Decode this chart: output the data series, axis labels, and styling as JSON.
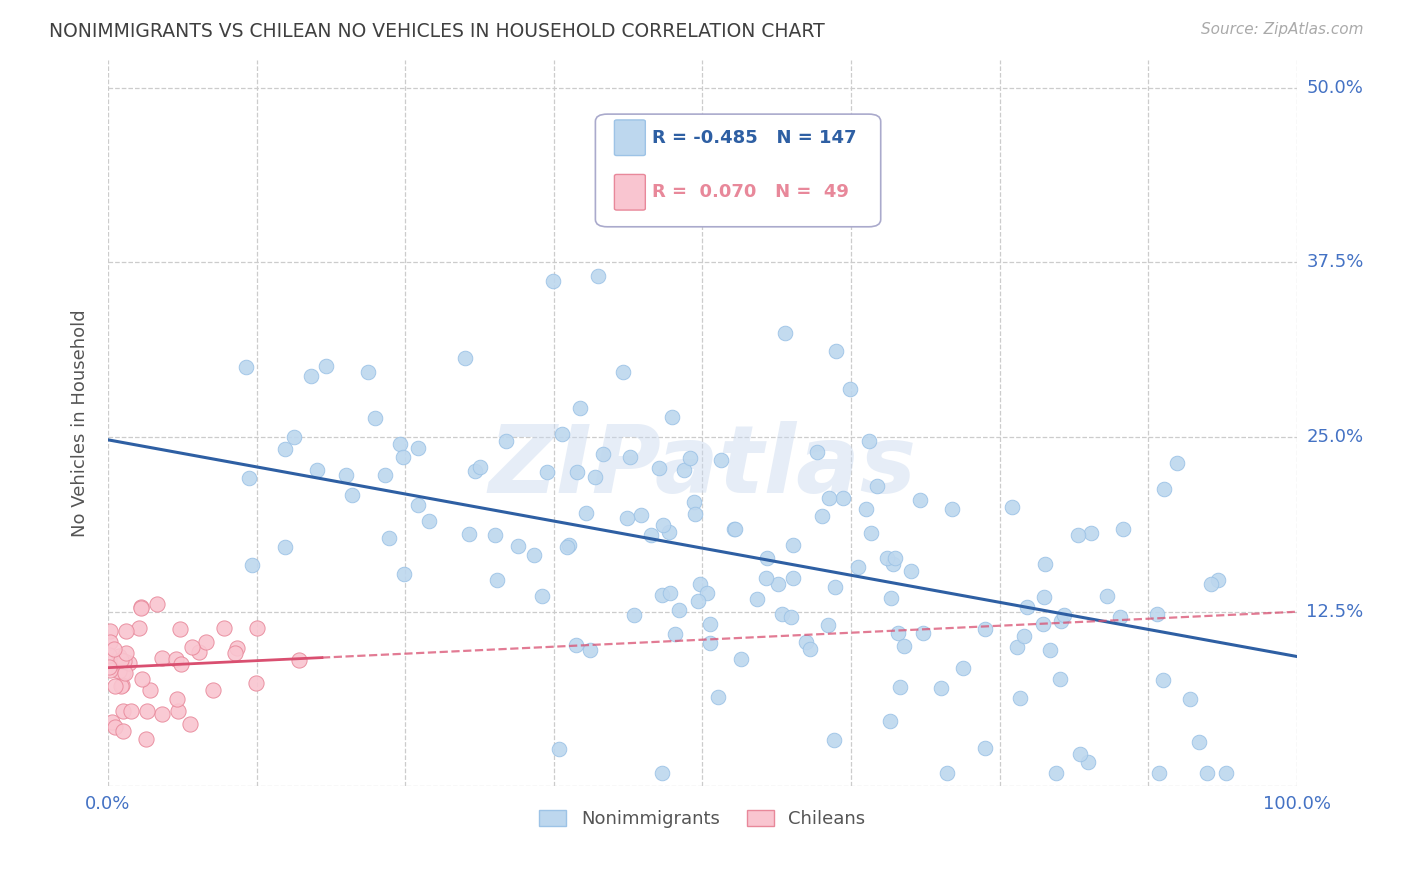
{
  "title": "NONIMMIGRANTS VS CHILEAN NO VEHICLES IN HOUSEHOLD CORRELATION CHART",
  "source_text": "Source: ZipAtlas.com",
  "ylabel": "No Vehicles in Household",
  "watermark": "ZIPatlas",
  "legend_nonimm": {
    "R": -0.485,
    "N": 147,
    "label": "Nonimmigrants"
  },
  "legend_chil": {
    "R": 0.07,
    "N": 49,
    "label": "Chileans"
  },
  "xlim": [
    0.0,
    1.0
  ],
  "ylim": [
    0.0,
    0.52
  ],
  "xticks": [
    0.0,
    0.125,
    0.25,
    0.375,
    0.5,
    0.625,
    0.75,
    0.875,
    1.0
  ],
  "xtick_labels": [
    "0.0%",
    "",
    "",
    "",
    "",
    "",
    "",
    "",
    "100.0%"
  ],
  "yticks": [
    0.0,
    0.125,
    0.25,
    0.375,
    0.5
  ],
  "ytick_labels": [
    "",
    "12.5%",
    "25.0%",
    "37.5%",
    "50.0%"
  ],
  "grid_color": "#cccccc",
  "bg_color": "#ffffff",
  "nonimm_color": "#bdd7ee",
  "nonimm_edge_color": "#9dc3e6",
  "chil_color": "#f9c5d0",
  "chil_edge_color": "#e8889a",
  "nonimm_line_color": "#2e5fa3",
  "chil_line_color": "#d94f70",
  "title_color": "#404040",
  "axis_label_color": "#555555",
  "tick_label_color": "#4472c4",
  "source_color": "#aaaaaa",
  "seed": 42,
  "nonimm_slope": -0.155,
  "nonimm_intercept": 0.248,
  "chil_slope": 0.04,
  "chil_intercept": 0.085
}
